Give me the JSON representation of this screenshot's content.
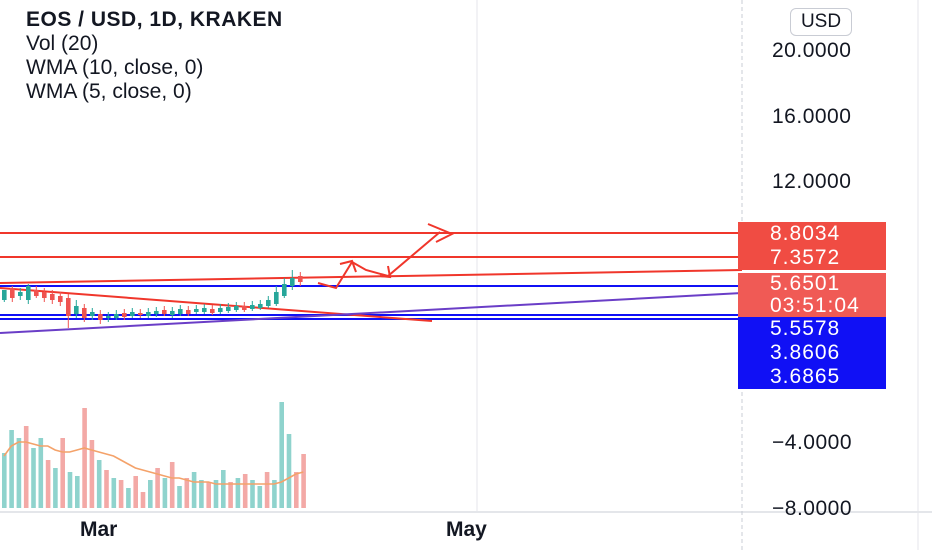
{
  "legend": {
    "title": "EOS / USD, 1D, KRAKEN",
    "vol": "Vol (20)",
    "wma10": "WMA (10, close, 0)",
    "wma5": "WMA (5, close, 0)"
  },
  "currency_button": "USD",
  "y_axis": {
    "ticks": [
      "20.0000",
      "16.0000",
      "12.0000",
      "−4.0000",
      "−8.0000"
    ]
  },
  "price_tags": {
    "level_1": "8.8034",
    "level_2": "7.3572",
    "current_price": "5.6501",
    "countdown": "03:51:04",
    "level_3": "5.5578",
    "level_4": "3.8606",
    "level_5": "3.6865"
  },
  "x_axis": {
    "labels": [
      "Mar",
      "May"
    ]
  },
  "colors": {
    "up": "#26a69a",
    "down": "#ef5350",
    "drawing_red": "#f0362b",
    "drawing_blue": "#1010f5",
    "drawing_purple": "#6a3ec7",
    "volume_ma": "#f4a26a"
  },
  "chart_data": {
    "type": "candlestick",
    "symbol": "EOS / USD",
    "interval": "1D",
    "exchange": "KRAKEN",
    "y_axis_ticks": [
      20,
      16,
      12,
      -4,
      -8
    ],
    "horizontal_levels": [
      8.8034,
      7.3572,
      5.6501,
      5.5578,
      3.8606,
      3.6865
    ]
  }
}
